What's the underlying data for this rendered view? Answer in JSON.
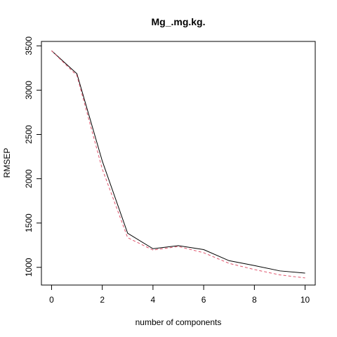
{
  "chart_data": {
    "type": "line",
    "title": "Mg_.mg.kg.",
    "xlabel": "number of components",
    "ylabel": "RMSEP",
    "xlim": [
      -0.4,
      10.4
    ],
    "ylim": [
      800,
      3550
    ],
    "x_ticks": [
      "0",
      "2",
      "4",
      "6",
      "8",
      "10"
    ],
    "y_ticks": [
      "1000",
      "1500",
      "2000",
      "2500",
      "3000",
      "3500"
    ],
    "grid": false,
    "legend": "none",
    "x": [
      0,
      1,
      2,
      3,
      4,
      5,
      6,
      7,
      8,
      9,
      10
    ],
    "series": [
      {
        "values": [
          3445,
          3185,
          2200,
          1385,
          1210,
          1245,
          1200,
          1075,
          1020,
          960,
          935
        ],
        "color": "#000000",
        "dash": "solid"
      },
      {
        "values": [
          3445,
          3165,
          2110,
          1335,
          1195,
          1235,
          1165,
          1045,
          975,
          915,
          880
        ],
        "color": "#DF536B",
        "dash": "dashed"
      }
    ]
  }
}
